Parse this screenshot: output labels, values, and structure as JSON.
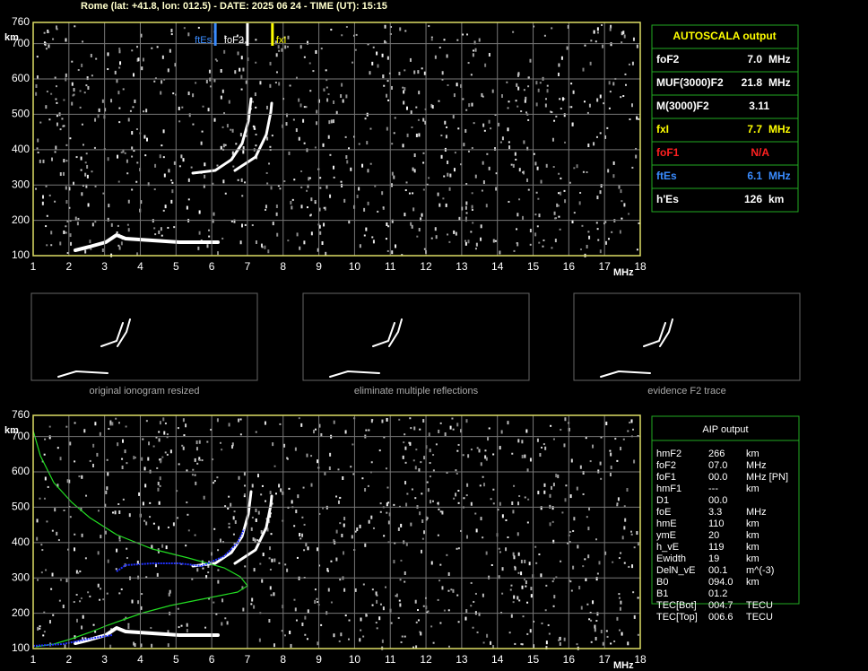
{
  "header": {
    "title": "Rome (lat: +41.8, lon: 012.5) - DATE: 2025 06 24 - TIME (UT): 15:15"
  },
  "ionograms": [
    {
      "xlim": [
        1,
        18
      ],
      "ylim": [
        100,
        760
      ],
      "xticks": [
        1,
        2,
        3,
        4,
        5,
        6,
        7,
        8,
        9,
        10,
        11,
        12,
        13,
        14,
        15,
        16,
        17,
        18
      ],
      "yticks": [
        100,
        200,
        300,
        400,
        500,
        600,
        700,
        760
      ],
      "y_unit": "km",
      "x_unit": "MHz",
      "markers": [
        {
          "label": "ftEs",
          "value": 6.1,
          "color": "#3a8cff"
        },
        {
          "label": "foF2",
          "value": 7.0,
          "color": "#ffffff"
        },
        {
          "label": "fxI",
          "value": 7.7,
          "color": "#ffff00"
        }
      ]
    },
    {
      "xlim": [
        1,
        18
      ],
      "ylim": [
        100,
        760
      ],
      "xticks": [
        1,
        2,
        3,
        4,
        5,
        6,
        7,
        8,
        9,
        10,
        11,
        12,
        13,
        14,
        15,
        16,
        17,
        18
      ],
      "yticks": [
        100,
        200,
        300,
        400,
        500,
        600,
        700,
        760
      ],
      "y_unit": "km",
      "x_unit": "MHz"
    }
  ],
  "autoscala": {
    "title": "AUTOSCALA output",
    "rows": [
      {
        "name": "foF2",
        "value": "7.0",
        "unit": "MHz",
        "color": "#ffffff"
      },
      {
        "name": "MUF(3000)F2",
        "value": "21.8",
        "unit": "MHz",
        "color": "#ffffff"
      },
      {
        "name": "M(3000)F2",
        "value": "3.11",
        "color": "#ffffff"
      },
      {
        "name": "fxI",
        "value": "7.7",
        "unit": "MHz",
        "color": "#ffff00"
      },
      {
        "name": "foF1",
        "value": "N/A",
        "color": "#ff2020"
      },
      {
        "name": "ftEs",
        "value": "6.1",
        "unit": "MHz",
        "color": "#3a8cff"
      },
      {
        "name": "h'Es",
        "value": "126",
        "unit": "km",
        "color": "#ffffff"
      }
    ]
  },
  "thumbnails": [
    {
      "caption": "original ionogram resized"
    },
    {
      "caption": "eliminate multiple reflections"
    },
    {
      "caption": "evidence F2 trace"
    }
  ],
  "aip": {
    "title": "AIP output",
    "rows": [
      [
        "hmF2",
        "266",
        "km"
      ],
      [
        "foF2",
        "07.0",
        "MHz"
      ],
      [
        "foF1",
        "00.0",
        "MHz   [PN]"
      ],
      [
        "hmF1",
        "---",
        "km"
      ],
      [
        "D1",
        "00.0"
      ],
      [
        "foE",
        "3.3",
        "MHz"
      ],
      [
        "hmE",
        "110",
        "km"
      ],
      [
        "ymE",
        "20",
        "km"
      ],
      [
        "h_vE",
        "119",
        "km"
      ],
      [
        "Ewidth",
        "19",
        "km"
      ],
      [
        "DelN_vE",
        "00.1",
        "m^(-3)"
      ],
      [
        "B0",
        "094.0",
        "km"
      ],
      [
        "B1",
        "01.2"
      ],
      [
        "TEC[Bot]",
        "004.7",
        "TECU"
      ],
      [
        "TEC[Top]",
        "006.6",
        "TECU"
      ]
    ]
  }
}
